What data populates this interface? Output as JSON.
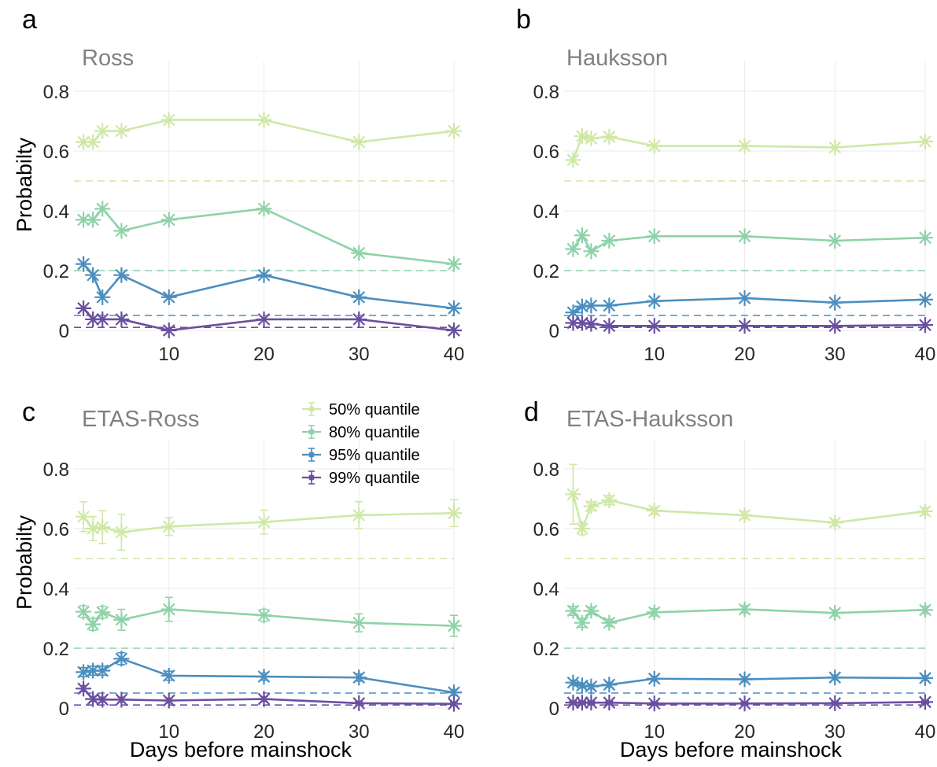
{
  "chart_data": [
    {
      "type": "line",
      "panel_letter": "a",
      "title": "Ross",
      "xlabel": "",
      "ylabel": "Probabilty",
      "xlim": [
        0,
        40
      ],
      "ylim": [
        0,
        0.9
      ],
      "xticks": [
        10,
        20,
        30,
        40
      ],
      "yticks": [
        0,
        0.2,
        0.4,
        0.6,
        0.8
      ],
      "ytick_labels": [
        "0",
        "0.2",
        "0.4",
        "0.6",
        "0.8"
      ],
      "grid": true,
      "x": [
        1,
        2,
        3,
        5,
        10,
        20,
        30,
        40
      ],
      "series": [
        {
          "color": "#cfe8a6",
          "values": [
            0.63,
            0.63,
            0.667,
            0.667,
            0.704,
            0.704,
            0.63,
            0.667
          ],
          "reference": 0.5
        },
        {
          "color": "#8ed2a8",
          "values": [
            0.37,
            0.37,
            0.407,
            0.333,
            0.37,
            0.407,
            0.259,
            0.222
          ],
          "reference": 0.2
        },
        {
          "color": "#4b8ebf",
          "values": [
            0.222,
            0.185,
            0.111,
            0.185,
            0.111,
            0.185,
            0.111,
            0.074
          ],
          "reference": 0.05
        },
        {
          "color": "#6a4fa0",
          "values": [
            0.074,
            0.037,
            0.037,
            0.037,
            0.0,
            0.037,
            0.037,
            0.0
          ],
          "reference": 0.01
        }
      ]
    },
    {
      "type": "line",
      "panel_letter": "b",
      "title": "Hauksson",
      "xlabel": "",
      "ylabel": "",
      "xlim": [
        0,
        40
      ],
      "ylim": [
        0,
        0.9
      ],
      "xticks": [
        10,
        20,
        30,
        40
      ],
      "yticks": [
        0,
        0.2,
        0.4,
        0.6,
        0.8
      ],
      "ytick_labels": [
        "0",
        "0.2",
        "0.4",
        "0.6",
        "0.8"
      ],
      "grid": true,
      "x": [
        1,
        2,
        3,
        5,
        10,
        20,
        30,
        40
      ],
      "series": [
        {
          "color": "#cfe8a6",
          "values": [
            0.57,
            0.65,
            0.642,
            0.648,
            0.617,
            0.617,
            0.612,
            0.632
          ],
          "reference": 0.5
        },
        {
          "color": "#8ed2a8",
          "values": [
            0.272,
            0.318,
            0.265,
            0.3,
            0.315,
            0.315,
            0.3,
            0.31
          ],
          "reference": 0.2
        },
        {
          "color": "#4b8ebf",
          "values": [
            0.06,
            0.08,
            0.083,
            0.083,
            0.098,
            0.108,
            0.093,
            0.103
          ],
          "reference": 0.05
        },
        {
          "color": "#6a4fa0",
          "values": [
            0.025,
            0.025,
            0.022,
            0.015,
            0.015,
            0.015,
            0.015,
            0.018
          ],
          "reference": 0.01
        }
      ]
    },
    {
      "type": "line",
      "panel_letter": "c",
      "title": "ETAS-Ross",
      "xlabel": "Days before mainshock",
      "ylabel": "Probabilty",
      "xlim": [
        0,
        40
      ],
      "ylim": [
        0,
        0.9
      ],
      "xticks": [
        10,
        20,
        30,
        40
      ],
      "yticks": [
        0,
        0.2,
        0.4,
        0.6,
        0.8
      ],
      "ytick_labels": [
        "0",
        "0.2",
        "0.4",
        "0.6",
        "0.8"
      ],
      "grid": true,
      "legend_position": "top-right",
      "x": [
        1,
        2,
        3,
        5,
        10,
        20,
        30,
        40
      ],
      "series": [
        {
          "name": "50% quantile",
          "color": "#cfe8a6",
          "values": [
            0.64,
            0.6,
            0.605,
            0.588,
            0.607,
            0.622,
            0.645,
            0.652
          ],
          "errors": [
            0.05,
            0.04,
            0.055,
            0.06,
            0.03,
            0.04,
            0.045,
            0.045
          ],
          "reference": 0.5
        },
        {
          "name": "80% quantile",
          "color": "#8ed2a8",
          "values": [
            0.322,
            0.28,
            0.32,
            0.295,
            0.33,
            0.31,
            0.285,
            0.275
          ],
          "errors": [
            0.02,
            0.02,
            0.02,
            0.035,
            0.04,
            0.02,
            0.03,
            0.035
          ],
          "reference": 0.2
        },
        {
          "name": "95% quantile",
          "color": "#4b8ebf",
          "values": [
            0.12,
            0.125,
            0.125,
            0.165,
            0.108,
            0.105,
            0.102,
            0.052
          ],
          "errors": [
            0.015,
            0.015,
            0.015,
            0.02,
            0.015,
            0.012,
            0.012,
            0.01
          ],
          "reference": 0.05
        },
        {
          "name": "99% quantile",
          "color": "#6a4fa0",
          "values": [
            0.065,
            0.03,
            0.028,
            0.028,
            0.025,
            0.03,
            0.016,
            0.014
          ],
          "errors": [
            0.01,
            0.008,
            0.008,
            0.008,
            0.008,
            0.008,
            0.006,
            0.006
          ],
          "reference": 0.01
        }
      ]
    },
    {
      "type": "line",
      "panel_letter": "d",
      "title": "ETAS-Hauksson",
      "xlabel": "Days before mainshock",
      "ylabel": "",
      "xlim": [
        0,
        40
      ],
      "ylim": [
        0,
        0.9
      ],
      "xticks": [
        10,
        20,
        30,
        40
      ],
      "yticks": [
        0,
        0.2,
        0.4,
        0.6,
        0.8
      ],
      "ytick_labels": [
        "0",
        "0.2",
        "0.4",
        "0.6",
        "0.8"
      ],
      "grid": true,
      "x": [
        1,
        2,
        3,
        5,
        10,
        20,
        30,
        40
      ],
      "series": [
        {
          "color": "#cfe8a6",
          "values": [
            0.715,
            0.6,
            0.675,
            0.695,
            0.66,
            0.645,
            0.62,
            0.658
          ],
          "errors": [
            0.1,
            0.02,
            0.015,
            0.015,
            0.012,
            0.012,
            0.01,
            0.012
          ],
          "reference": 0.5
        },
        {
          "color": "#8ed2a8",
          "values": [
            0.325,
            0.285,
            0.325,
            0.285,
            0.32,
            0.33,
            0.318,
            0.328
          ],
          "errors": [
            0.015,
            0.015,
            0.012,
            0.012,
            0.012,
            0.012,
            0.01,
            0.012
          ],
          "reference": 0.2
        },
        {
          "color": "#4b8ebf",
          "values": [
            0.085,
            0.075,
            0.072,
            0.078,
            0.098,
            0.096,
            0.102,
            0.1
          ],
          "errors": [
            0.008,
            0.008,
            0.008,
            0.008,
            0.008,
            0.008,
            0.008,
            0.008
          ],
          "reference": 0.05
        },
        {
          "color": "#6a4fa0",
          "values": [
            0.018,
            0.018,
            0.018,
            0.018,
            0.015,
            0.015,
            0.016,
            0.02
          ],
          "errors": [
            0.005,
            0.005,
            0.005,
            0.005,
            0.005,
            0.005,
            0.005,
            0.005
          ],
          "reference": 0.01
        }
      ]
    }
  ]
}
